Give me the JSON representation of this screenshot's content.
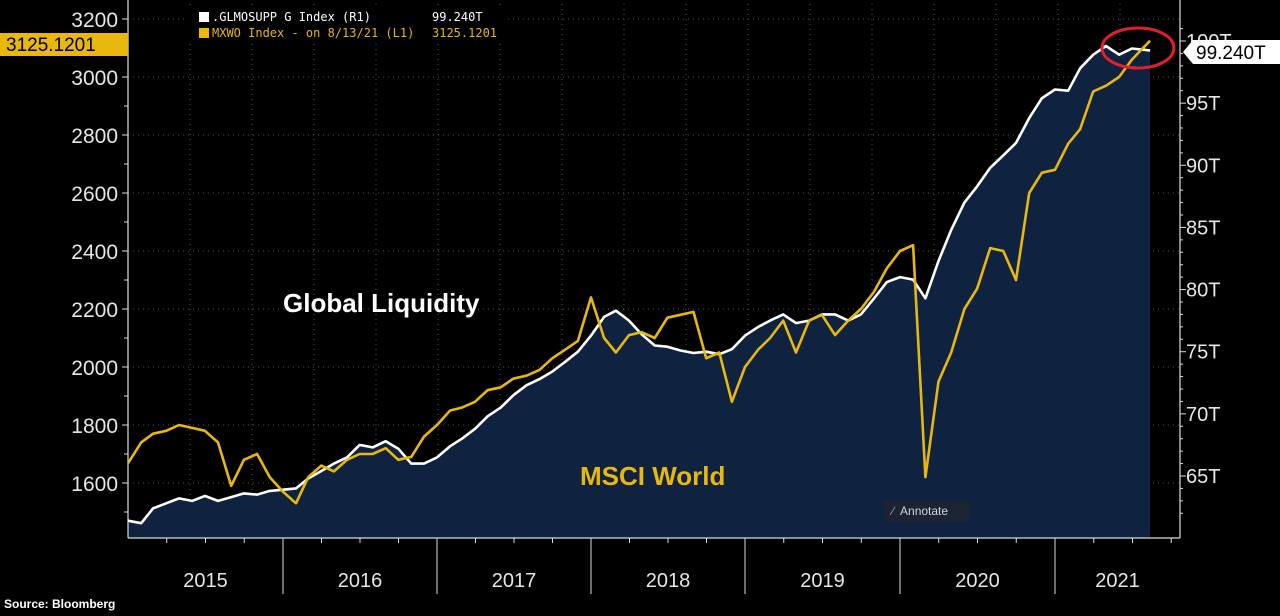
{
  "source_label": "Source: Bloomberg",
  "annotate_label": "Annotate",
  "chart_data": {
    "type": "line",
    "legend_position": "top-left",
    "grid": true,
    "colors": {
      "background": "#000000",
      "plot_fill": "#0f2240",
      "white_series": "#ffffff",
      "gold_series": "#e8b80e",
      "circle": "#e0202a",
      "grid": "#555555"
    },
    "x_ticks": [
      "2015",
      "2016",
      "2017",
      "2018",
      "2019",
      "2020",
      "2021"
    ],
    "x_range": [
      "2015-01-01",
      "2021-08-13"
    ],
    "y_left": {
      "ticks": [
        "1600",
        "1800",
        "2000",
        "2200",
        "2400",
        "2600",
        "2800",
        "3000",
        "3200"
      ],
      "range": [
        1460,
        3220
      ]
    },
    "y_right": {
      "ticks": [
        "65T",
        "70T",
        "75T",
        "80T",
        "85T",
        "90T",
        "95T",
        "100T"
      ],
      "range": [
        60.5,
        102
      ]
    },
    "annotations": {
      "global_liquidity": "Global Liquidity",
      "msci_world": "MSCI World"
    },
    "series": [
      {
        "legend": ".GLMOSUPP G Index  (R1)",
        "legend_value": "99.240T",
        "last_value_label": "99.240T",
        "axis": "right",
        "color": "#ffffff",
        "points": [
          [
            "2015-01-01",
            61.4
          ],
          [
            "2015-02-01",
            61.2
          ],
          [
            "2015-03-01",
            62.4
          ],
          [
            "2015-04-01",
            62.8
          ],
          [
            "2015-05-01",
            63.2
          ],
          [
            "2015-06-01",
            63.0
          ],
          [
            "2015-07-01",
            63.4
          ],
          [
            "2015-08-01",
            63.0
          ],
          [
            "2015-09-01",
            63.3
          ],
          [
            "2015-10-01",
            63.6
          ],
          [
            "2015-11-01",
            63.5
          ],
          [
            "2015-12-01",
            63.8
          ],
          [
            "2016-01-01",
            63.9
          ],
          [
            "2016-02-01",
            64.0
          ],
          [
            "2016-03-01",
            64.8
          ],
          [
            "2016-04-01",
            65.4
          ],
          [
            "2016-05-01",
            66.0
          ],
          [
            "2016-06-01",
            66.5
          ],
          [
            "2016-07-01",
            67.5
          ],
          [
            "2016-08-01",
            67.3
          ],
          [
            "2016-09-01",
            67.8
          ],
          [
            "2016-10-01",
            67.2
          ],
          [
            "2016-11-01",
            66.0
          ],
          [
            "2016-12-01",
            66.0
          ],
          [
            "2017-01-01",
            66.5
          ],
          [
            "2017-02-01",
            67.4
          ],
          [
            "2017-03-01",
            68.0
          ],
          [
            "2017-04-01",
            68.8
          ],
          [
            "2017-05-01",
            69.8
          ],
          [
            "2017-06-01",
            70.5
          ],
          [
            "2017-07-01",
            71.5
          ],
          [
            "2017-08-01",
            72.3
          ],
          [
            "2017-09-01",
            72.8
          ],
          [
            "2017-10-01",
            73.4
          ],
          [
            "2017-11-01",
            74.2
          ],
          [
            "2017-12-01",
            75.0
          ],
          [
            "2018-01-01",
            76.3
          ],
          [
            "2018-02-01",
            77.8
          ],
          [
            "2018-03-01",
            78.3
          ],
          [
            "2018-04-01",
            77.5
          ],
          [
            "2018-05-01",
            76.4
          ],
          [
            "2018-06-01",
            75.5
          ],
          [
            "2018-07-01",
            75.4
          ],
          [
            "2018-08-01",
            75.1
          ],
          [
            "2018-09-01",
            74.9
          ],
          [
            "2018-10-01",
            75.0
          ],
          [
            "2018-11-01",
            74.8
          ],
          [
            "2018-12-01",
            75.2
          ],
          [
            "2019-01-01",
            76.3
          ],
          [
            "2019-02-01",
            77.0
          ],
          [
            "2019-03-01",
            77.5
          ],
          [
            "2019-04-01",
            78.0
          ],
          [
            "2019-05-01",
            77.3
          ],
          [
            "2019-06-01",
            77.5
          ],
          [
            "2019-07-01",
            78.0
          ],
          [
            "2019-08-01",
            78.0
          ],
          [
            "2019-09-01",
            77.5
          ],
          [
            "2019-10-01",
            78.0
          ],
          [
            "2019-11-01",
            79.3
          ],
          [
            "2019-12-01",
            80.6
          ],
          [
            "2020-01-01",
            81.0
          ],
          [
            "2020-02-01",
            80.8
          ],
          [
            "2020-03-01",
            79.3
          ],
          [
            "2020-04-01",
            82.3
          ],
          [
            "2020-05-01",
            84.8
          ],
          [
            "2020-06-01",
            87.0
          ],
          [
            "2020-07-01",
            88.3
          ],
          [
            "2020-08-01",
            89.8
          ],
          [
            "2020-09-01",
            90.8
          ],
          [
            "2020-10-01",
            91.8
          ],
          [
            "2020-11-01",
            93.8
          ],
          [
            "2020-12-01",
            95.4
          ],
          [
            "2021-01-01",
            96.1
          ],
          [
            "2021-02-01",
            96.0
          ],
          [
            "2021-03-01",
            97.8
          ],
          [
            "2021-04-01",
            98.9
          ],
          [
            "2021-05-01",
            99.6
          ],
          [
            "2021-06-01",
            98.9
          ],
          [
            "2021-07-01",
            99.4
          ],
          [
            "2021-08-13",
            99.24
          ]
        ]
      },
      {
        "legend": "MXWO Index -  on 8/13/21  (L1)",
        "legend_value": "3125.1201",
        "last_value_label": "3125.1201",
        "axis": "left",
        "color": "#e8b80e",
        "points": [
          [
            "2015-01-01",
            1668
          ],
          [
            "2015-02-01",
            1740
          ],
          [
            "2015-03-01",
            1770
          ],
          [
            "2015-04-01",
            1780
          ],
          [
            "2015-05-01",
            1800
          ],
          [
            "2015-06-01",
            1790
          ],
          [
            "2015-07-01",
            1780
          ],
          [
            "2015-08-01",
            1740
          ],
          [
            "2015-09-01",
            1590
          ],
          [
            "2015-10-01",
            1680
          ],
          [
            "2015-11-01",
            1700
          ],
          [
            "2015-12-01",
            1620
          ],
          [
            "2016-01-01",
            1570
          ],
          [
            "2016-02-01",
            1530
          ],
          [
            "2016-03-01",
            1620
          ],
          [
            "2016-04-01",
            1660
          ],
          [
            "2016-05-01",
            1640
          ],
          [
            "2016-06-01",
            1680
          ],
          [
            "2016-07-01",
            1700
          ],
          [
            "2016-08-01",
            1700
          ],
          [
            "2016-09-01",
            1720
          ],
          [
            "2016-10-01",
            1680
          ],
          [
            "2016-11-01",
            1690
          ],
          [
            "2016-12-01",
            1760
          ],
          [
            "2017-01-01",
            1800
          ],
          [
            "2017-02-01",
            1850
          ],
          [
            "2017-03-01",
            1860
          ],
          [
            "2017-04-01",
            1880
          ],
          [
            "2017-05-01",
            1920
          ],
          [
            "2017-06-01",
            1930
          ],
          [
            "2017-07-01",
            1960
          ],
          [
            "2017-08-01",
            1970
          ],
          [
            "2017-09-01",
            1990
          ],
          [
            "2017-10-01",
            2030
          ],
          [
            "2017-11-01",
            2060
          ],
          [
            "2017-12-01",
            2090
          ],
          [
            "2018-01-01",
            2240
          ],
          [
            "2018-02-01",
            2100
          ],
          [
            "2018-03-01",
            2050
          ],
          [
            "2018-04-01",
            2110
          ],
          [
            "2018-05-01",
            2120
          ],
          [
            "2018-06-01",
            2100
          ],
          [
            "2018-07-01",
            2170
          ],
          [
            "2018-08-01",
            2180
          ],
          [
            "2018-09-01",
            2190
          ],
          [
            "2018-10-01",
            2030
          ],
          [
            "2018-11-01",
            2050
          ],
          [
            "2018-12-01",
            1880
          ],
          [
            "2019-01-01",
            2000
          ],
          [
            "2019-02-01",
            2060
          ],
          [
            "2019-03-01",
            2100
          ],
          [
            "2019-04-01",
            2160
          ],
          [
            "2019-05-01",
            2050
          ],
          [
            "2019-06-01",
            2160
          ],
          [
            "2019-07-01",
            2180
          ],
          [
            "2019-08-01",
            2110
          ],
          [
            "2019-09-01",
            2160
          ],
          [
            "2019-10-01",
            2200
          ],
          [
            "2019-11-01",
            2260
          ],
          [
            "2019-12-01",
            2340
          ],
          [
            "2020-01-01",
            2400
          ],
          [
            "2020-02-01",
            2420
          ],
          [
            "2020-03-01",
            1620
          ],
          [
            "2020-04-01",
            1950
          ],
          [
            "2020-05-01",
            2050
          ],
          [
            "2020-06-01",
            2200
          ],
          [
            "2020-07-01",
            2270
          ],
          [
            "2020-08-01",
            2410
          ],
          [
            "2020-09-01",
            2400
          ],
          [
            "2020-10-01",
            2300
          ],
          [
            "2020-11-01",
            2600
          ],
          [
            "2020-12-01",
            2670
          ],
          [
            "2021-01-01",
            2680
          ],
          [
            "2021-02-01",
            2770
          ],
          [
            "2021-03-01",
            2820
          ],
          [
            "2021-04-01",
            2950
          ],
          [
            "2021-05-01",
            2970
          ],
          [
            "2021-06-01",
            3000
          ],
          [
            "2021-07-01",
            3060
          ],
          [
            "2021-08-13",
            3125.1201
          ]
        ]
      }
    ]
  }
}
